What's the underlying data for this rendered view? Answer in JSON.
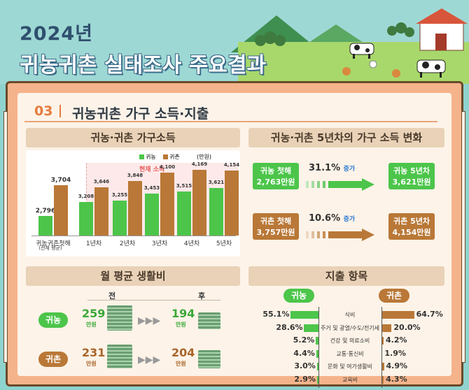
{
  "header": {
    "year": "2024년",
    "title": "귀농귀촌 실태조사 주요결과"
  },
  "section": {
    "number": "03",
    "title": "귀농귀촌 가구 소득·지출"
  },
  "colors": {
    "farm": "#4cc54a",
    "rural": "#b97837",
    "board": "#f5b38b"
  },
  "income": {
    "panel_title": "귀농·귀촌 가구소득",
    "legend_farm": "귀농",
    "legend_rural": "귀촌",
    "unit": "(만원)",
    "current_label": "현재 소득"
  },
  "chart_data": {
    "type": "bar",
    "categories": [
      "귀농귀촌첫해",
      "1년차",
      "2년차",
      "3년차",
      "4년차",
      "5년차"
    ],
    "sub_label": "(전체 평균)",
    "series": [
      {
        "name": "귀농",
        "values": [
          2796,
          3208,
          3255,
          3453,
          3515,
          3621
        ],
        "labels": [
          "2,796",
          "3,208",
          "3,255",
          "3,453",
          "3,515",
          "3,621"
        ]
      },
      {
        "name": "귀촌",
        "values": [
          3704,
          3646,
          3848,
          4100,
          4169,
          4154
        ],
        "labels": [
          "3,704",
          "3,646",
          "3,848",
          "4,100",
          "4,169",
          "4,154"
        ]
      }
    ],
    "ylim": [
      2200,
      4300
    ]
  },
  "change": {
    "panel_title": "귀농·귀촌 5년차의 가구 소득 변화",
    "farm_start_label": "귀농 첫해",
    "farm_start_value": "2,763만원",
    "farm_pct": "31.1%",
    "farm_increase": "증가",
    "farm_end_label": "귀농 5년차",
    "farm_end_value": "3,621만원",
    "rural_start_label": "귀촌 첫해",
    "rural_start_value": "3,757만원",
    "rural_pct": "10.6%",
    "rural_increase": "증가",
    "rural_end_label": "귀촌 5년차",
    "rural_end_value": "4,154만원"
  },
  "living": {
    "panel_title": "월 평균 생활비",
    "before": "전",
    "after": "후",
    "farm_label": "귀농",
    "farm_before": "259",
    "farm_after": "194",
    "rural_label": "귀촌",
    "rural_before": "231",
    "rural_after": "204",
    "unit": "만원"
  },
  "expense": {
    "panel_title": "지출 항목",
    "farm_label": "귀농",
    "rural_label": "귀촌",
    "items": [
      {
        "category": "식비",
        "farm": 55.1,
        "farm_label": "55.1%",
        "rural": 64.7,
        "rural_label": "64.7%"
      },
      {
        "category": "주거 및 광열/수도/전기세",
        "farm": 28.6,
        "farm_label": "28.6%",
        "rural": 20.0,
        "rural_label": "20.0%"
      },
      {
        "category": "건강 및 의료소비",
        "farm": 5.2,
        "farm_label": "5.2%",
        "rural": 4.2,
        "rural_label": "4.2%"
      },
      {
        "category": "교통·통신비",
        "farm": 4.4,
        "farm_label": "4.4%",
        "rural": 1.9,
        "rural_label": "1.9%"
      },
      {
        "category": "문화 및 여가생활비",
        "farm": 3.0,
        "farm_label": "3.0%",
        "rural": 4.9,
        "rural_label": "4.9%"
      },
      {
        "category": "교육비",
        "farm": 2.9,
        "farm_label": "2.9%",
        "rural": 4.3,
        "rural_label": "4.3%"
      }
    ]
  }
}
